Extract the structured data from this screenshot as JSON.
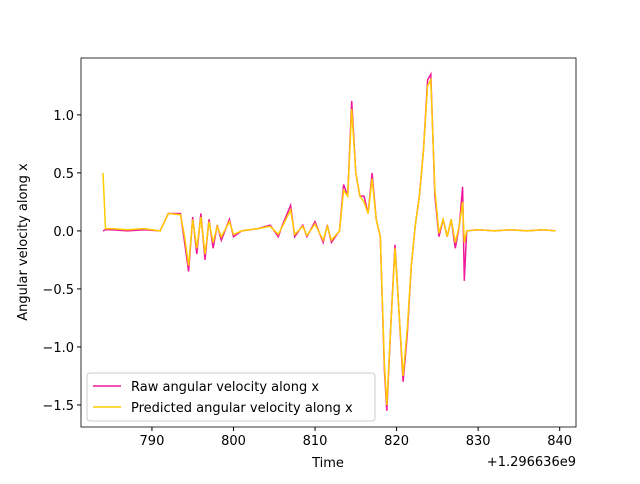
{
  "chart_data": {
    "type": "line",
    "xlabel": "Time",
    "ylabel": "Angular velocity along x",
    "x_offset_label": "+1.296636e9",
    "x": [
      784,
      784.3,
      785,
      787,
      789,
      791,
      792,
      793.5,
      794,
      794.5,
      795,
      795.5,
      796,
      796.5,
      797,
      797.5,
      798,
      798.5,
      799.5,
      800,
      801,
      803,
      804.5,
      805.5,
      806,
      807,
      807.5,
      808.5,
      809,
      810,
      811,
      811.5,
      812,
      813,
      813.5,
      814,
      814.5,
      815,
      815.5,
      816,
      816.5,
      817,
      817.5,
      818,
      818.5,
      818.8,
      819.3,
      819.8,
      820.3,
      820.8,
      821.3,
      821.8,
      822.3,
      822.8,
      823.3,
      823.8,
      824.2,
      824.7,
      825.2,
      825.7,
      826.2,
      826.7,
      827.2,
      827.7,
      828.1,
      828.3,
      828.6,
      830,
      832,
      834,
      836,
      838,
      839.5
    ],
    "series": [
      {
        "name": "Raw angular velocity along x",
        "color": "#f0199a",
        "values": [
          0,
          0.01,
          0.01,
          0,
          0.01,
          0,
          0.15,
          0.15,
          -0.1,
          -0.35,
          0.12,
          -0.2,
          0.15,
          -0.25,
          0.1,
          -0.15,
          0.05,
          -0.08,
          0.1,
          -0.05,
          0,
          0.02,
          0.05,
          -0.05,
          0.05,
          0.22,
          -0.05,
          0.05,
          -0.05,
          0.08,
          -0.1,
          0.05,
          -0.1,
          0,
          0.4,
          0.3,
          1.12,
          0.5,
          0.3,
          0.3,
          0.15,
          0.5,
          0.1,
          -0.05,
          -1.2,
          -1.55,
          -0.8,
          -0.12,
          -0.7,
          -1.3,
          -0.9,
          -0.3,
          0.05,
          0.3,
          0.7,
          1.3,
          1.35,
          0.3,
          -0.05,
          0.1,
          -0.05,
          0.1,
          -0.15,
          0.05,
          0.38,
          -0.43,
          0,
          0.01,
          0,
          0.01,
          0,
          0.01,
          0
        ]
      },
      {
        "name": "Predicted angular velocity along x",
        "color": "#ffcc00",
        "values": [
          0.5,
          0.02,
          0.02,
          0.01,
          0.02,
          0,
          0.15,
          0.14,
          -0.05,
          -0.3,
          0.1,
          -0.15,
          0.12,
          -0.2,
          0.08,
          -0.1,
          0.04,
          -0.05,
          0.08,
          -0.03,
          0,
          0.02,
          0.04,
          -0.03,
          0.04,
          0.18,
          -0.03,
          0.04,
          -0.04,
          0.06,
          -0.08,
          0.04,
          -0.08,
          0,
          0.35,
          0.3,
          1.05,
          0.5,
          0.3,
          0.25,
          0.15,
          0.45,
          0.1,
          -0.05,
          -1.15,
          -1.5,
          -0.8,
          -0.15,
          -0.7,
          -1.25,
          -0.85,
          -0.3,
          0.05,
          0.3,
          0.7,
          1.25,
          1.3,
          0.35,
          -0.02,
          0.1,
          -0.05,
          0.1,
          -0.1,
          0.05,
          0.25,
          -0.1,
          0,
          0.01,
          0,
          0.01,
          0,
          0.01,
          0
        ]
      }
    ],
    "xlim": [
      781.3,
      842
    ],
    "ylim": [
      -1.69,
      1.49
    ],
    "xticks": [
      790,
      800,
      810,
      820,
      830,
      840
    ],
    "yticks": [
      {
        "value": -1.5,
        "label": "−1.5"
      },
      {
        "value": -1,
        "label": "−1.0"
      },
      {
        "value": -0.5,
        "label": "−0.5"
      },
      {
        "value": 0,
        "label": "0.0"
      },
      {
        "value": 0.5,
        "label": "0.5"
      },
      {
        "value": 1,
        "label": "1.0"
      }
    ],
    "legend": "lower left",
    "grid": false
  }
}
